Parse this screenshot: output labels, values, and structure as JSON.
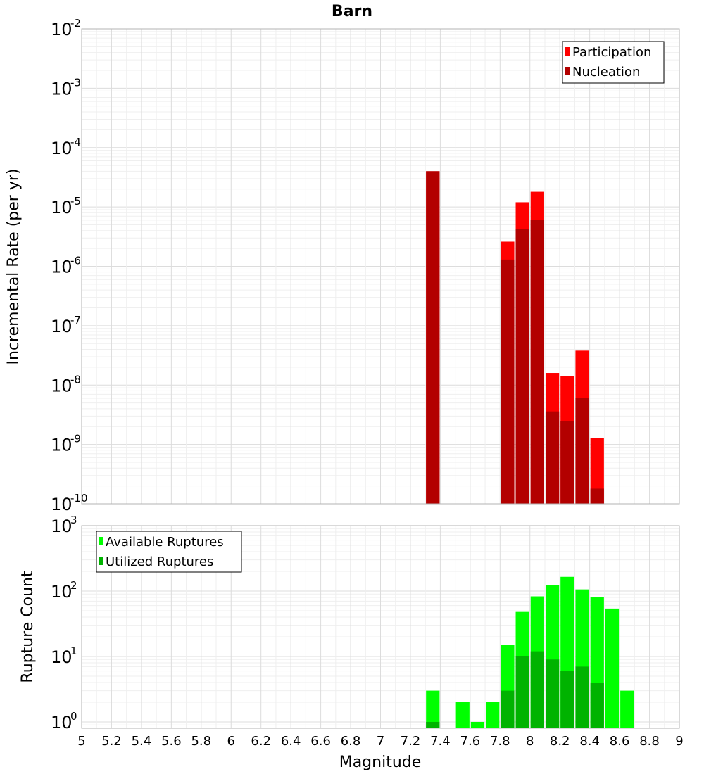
{
  "chart_data": [
    {
      "type": "bar",
      "title": "Barn",
      "xlabel": "",
      "ylabel": "Incremental Rate (per yr)",
      "yscale": "log",
      "ylim": [
        1e-10,
        0.01
      ],
      "xlim": [
        5,
        9
      ],
      "y_tick_exponents": [
        "-10",
        "-9",
        "-8",
        "-7",
        "-6",
        "-5",
        "-4",
        "-3",
        "-2"
      ],
      "bar_width": 0.1,
      "legend": {
        "placement": "top-right"
      },
      "grid": true,
      "series": [
        {
          "name": "Participation",
          "color": "#ff0000",
          "points": [
            {
              "x": 7.35,
              "y": 4e-05
            },
            {
              "x": 7.85,
              "y": 2.6e-06
            },
            {
              "x": 7.95,
              "y": 1.2e-05
            },
            {
              "x": 8.05,
              "y": 1.8e-05
            },
            {
              "x": 8.15,
              "y": 1.6e-08
            },
            {
              "x": 8.25,
              "y": 1.4e-08
            },
            {
              "x": 8.35,
              "y": 3.8e-08
            },
            {
              "x": 8.45,
              "y": 1.3e-09
            }
          ]
        },
        {
          "name": "Nucleation",
          "color": "#b30000",
          "points": [
            {
              "x": 7.35,
              "y": 4e-05
            },
            {
              "x": 7.85,
              "y": 1.3e-06
            },
            {
              "x": 7.95,
              "y": 4.2e-06
            },
            {
              "x": 8.05,
              "y": 6e-06
            },
            {
              "x": 8.15,
              "y": 3.6e-09
            },
            {
              "x": 8.25,
              "y": 2.5e-09
            },
            {
              "x": 8.35,
              "y": 6e-09
            },
            {
              "x": 8.45,
              "y": 1.8e-10
            }
          ]
        }
      ]
    },
    {
      "type": "bar",
      "title": "",
      "xlabel": "Magnitude",
      "ylabel": "Rupture Count",
      "yscale": "log",
      "ylim": [
        0.8,
        1000
      ],
      "xlim": [
        5,
        9
      ],
      "y_tick_exponents": [
        "0",
        "1",
        "2",
        "3"
      ],
      "x_ticks": [
        "5",
        "5.2",
        "5.4",
        "5.6",
        "5.8",
        "6",
        "6.2",
        "6.4",
        "6.6",
        "6.8",
        "7",
        "7.2",
        "7.4",
        "7.6",
        "7.8",
        "8",
        "8.2",
        "8.4",
        "8.6",
        "8.8",
        "9"
      ],
      "bar_width": 0.1,
      "legend": {
        "placement": "top-left"
      },
      "grid": true,
      "series": [
        {
          "name": "Available Ruptures",
          "color": "#00ff00",
          "points": [
            {
              "x": 7.35,
              "y": 3
            },
            {
              "x": 7.55,
              "y": 2
            },
            {
              "x": 7.65,
              "y": 1
            },
            {
              "x": 7.75,
              "y": 2
            },
            {
              "x": 7.85,
              "y": 15
            },
            {
              "x": 7.95,
              "y": 48
            },
            {
              "x": 8.05,
              "y": 83
            },
            {
              "x": 8.15,
              "y": 122
            },
            {
              "x": 8.25,
              "y": 165
            },
            {
              "x": 8.35,
              "y": 106
            },
            {
              "x": 8.45,
              "y": 80
            },
            {
              "x": 8.55,
              "y": 54
            },
            {
              "x": 8.65,
              "y": 3
            }
          ]
        },
        {
          "name": "Utilized Ruptures",
          "color": "#00b300",
          "points": [
            {
              "x": 7.35,
              "y": 1
            },
            {
              "x": 7.85,
              "y": 3
            },
            {
              "x": 7.95,
              "y": 10
            },
            {
              "x": 8.05,
              "y": 12
            },
            {
              "x": 8.15,
              "y": 9
            },
            {
              "x": 8.25,
              "y": 6
            },
            {
              "x": 8.35,
              "y": 7
            },
            {
              "x": 8.45,
              "y": 4
            }
          ]
        }
      ]
    }
  ]
}
